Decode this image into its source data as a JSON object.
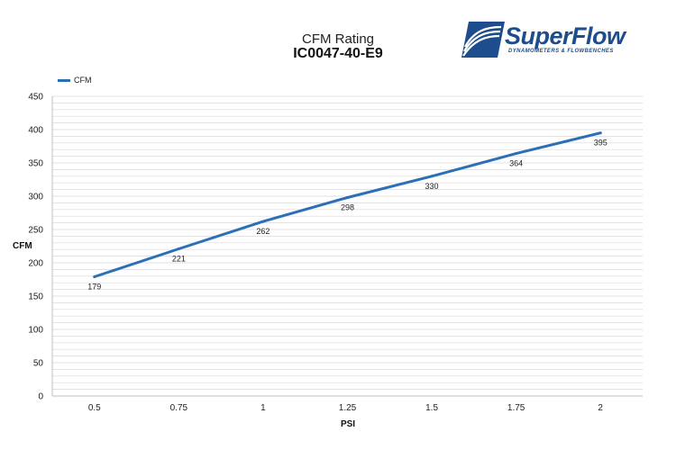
{
  "header": {
    "title": "CFM Rating",
    "subtitle": "IC0047-40-E9"
  },
  "logo": {
    "wordmark": "SuperFlow",
    "tagline": "DYNAMOMETERS & FLOWBENCHES",
    "color": "#1d4d8c"
  },
  "legend": {
    "label": "CFM",
    "placement": "top-left"
  },
  "colors": {
    "series": "#2a6fb8",
    "grid": "#d9d9d9",
    "axis": "#bfbfbf"
  },
  "chart_data": {
    "type": "line",
    "x": [
      "0.5",
      "0.75",
      "1",
      "1.25",
      "1.5",
      "1.75",
      "2"
    ],
    "series": [
      {
        "name": "CFM",
        "values": [
          179,
          221,
          262,
          298,
          330,
          364,
          395
        ]
      }
    ],
    "xlabel": "PSI",
    "ylabel": "CFM",
    "ylim": [
      0,
      450
    ],
    "y_ticks": [
      0,
      50,
      100,
      150,
      200,
      250,
      300,
      350,
      400,
      450
    ],
    "grid": true,
    "data_labels": true
  }
}
